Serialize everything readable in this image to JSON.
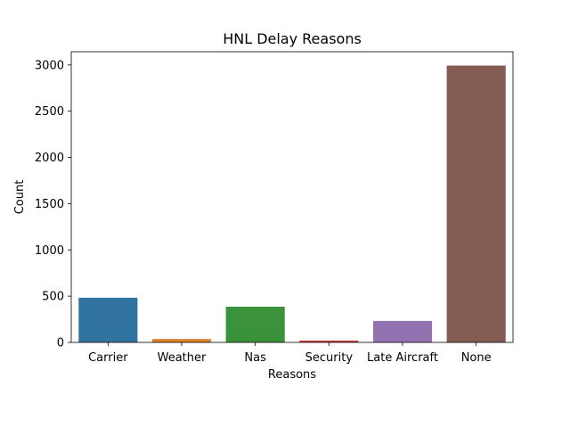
{
  "chart_data": {
    "type": "bar",
    "title": "HNL Delay Reasons",
    "xlabel": "Reasons",
    "ylabel": "Count",
    "categories": [
      "Carrier",
      "Weather",
      "Nas",
      "Security",
      "Late Aircraft",
      "None"
    ],
    "values": [
      483,
      37,
      386,
      20,
      232,
      2993
    ],
    "ylim": [
      0,
      3143
    ],
    "yticks": [
      0,
      500,
      1000,
      1500,
      2000,
      2500,
      3000
    ],
    "grid": false,
    "legend": "none",
    "colors": [
      "#3274a1",
      "#e1812c",
      "#3a923a",
      "#c03d3e",
      "#9372b2",
      "#845b53"
    ]
  }
}
